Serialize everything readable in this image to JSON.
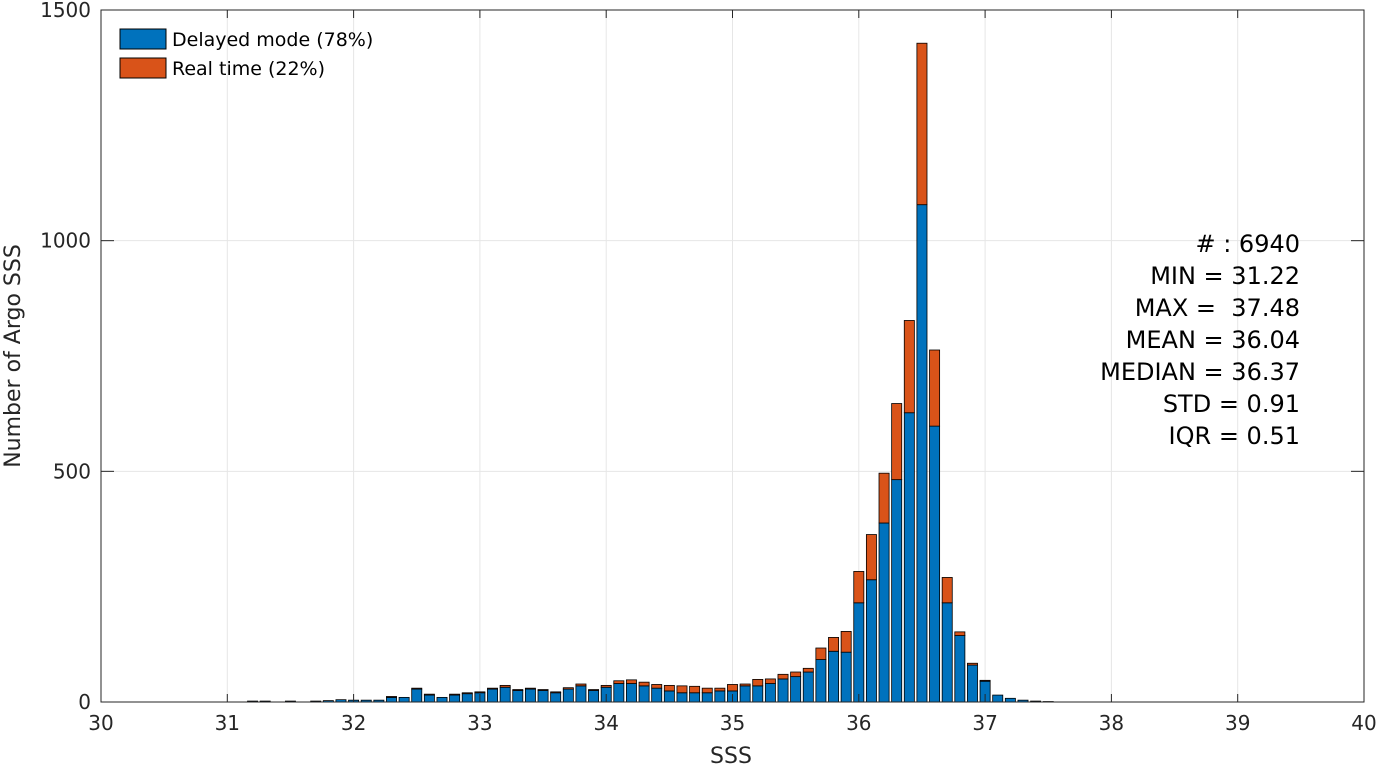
{
  "chart_data": {
    "type": "bar",
    "stacked": true,
    "xlabel": "SSS",
    "ylabel": "Number of Argo SSS",
    "xlim": [
      30,
      40
    ],
    "ylim": [
      0,
      1500
    ],
    "xticks": [
      "30",
      "31",
      "32",
      "33",
      "34",
      "35",
      "36",
      "37",
      "38",
      "39",
      "40"
    ],
    "yticks": [
      "0",
      "500",
      "1000",
      "1500"
    ],
    "grid": true,
    "legend_position": "top-left",
    "bin_width": 0.1,
    "x": [
      31.2,
      31.3,
      31.4,
      31.5,
      31.6,
      31.7,
      31.8,
      31.9,
      32.0,
      32.1,
      32.2,
      32.3,
      32.4,
      32.5,
      32.6,
      32.7,
      32.8,
      32.9,
      33.0,
      33.1,
      33.2,
      33.3,
      33.4,
      33.5,
      33.6,
      33.7,
      33.8,
      33.9,
      34.0,
      34.1,
      34.2,
      34.3,
      34.4,
      34.5,
      34.6,
      34.7,
      34.8,
      34.9,
      35.0,
      35.1,
      35.2,
      35.3,
      35.4,
      35.5,
      35.6,
      35.7,
      35.8,
      35.9,
      36.0,
      36.1,
      36.2,
      36.3,
      36.4,
      36.5,
      36.6,
      36.7,
      36.8,
      36.9,
      37.0,
      37.1,
      37.2,
      37.3,
      37.4,
      37.5
    ],
    "series": [
      {
        "name": "Delayed mode (78%)",
        "color": "#0072BD",
        "values": [
          2,
          2,
          0,
          2,
          0,
          2,
          3,
          5,
          4,
          4,
          4,
          10,
          10,
          28,
          15,
          10,
          15,
          18,
          20,
          28,
          32,
          25,
          28,
          25,
          20,
          28,
          35,
          25,
          32,
          40,
          40,
          35,
          30,
          24,
          20,
          20,
          20,
          24,
          24,
          35,
          35,
          40,
          50,
          55,
          65,
          92,
          110,
          108,
          215,
          265,
          388,
          482,
          627,
          1078,
          598,
          215,
          144,
          80,
          45,
          15,
          8,
          4,
          2,
          1
        ]
      },
      {
        "name": "Real time (22%)",
        "color": "#D95319",
        "values": [
          0,
          0,
          0,
          0,
          0,
          0,
          0,
          0,
          0,
          0,
          0,
          2,
          0,
          2,
          2,
          0,
          2,
          2,
          2,
          2,
          4,
          2,
          2,
          2,
          2,
          3,
          4,
          2,
          4,
          6,
          8,
          8,
          8,
          12,
          15,
          14,
          10,
          6,
          14,
          4,
          14,
          10,
          10,
          10,
          8,
          25,
          30,
          45,
          68,
          98,
          108,
          165,
          200,
          350,
          165,
          55,
          8,
          4,
          2,
          0,
          0,
          0,
          0,
          0
        ]
      }
    ]
  },
  "stats": {
    "count": "# : 6940",
    "min": "MIN = 31.22",
    "max": "MAX =  37.48",
    "mean": "MEAN = 36.04",
    "median": "MEDIAN = 36.37",
    "std": "STD = 0.91",
    "iqr": "IQR = 0.51"
  }
}
